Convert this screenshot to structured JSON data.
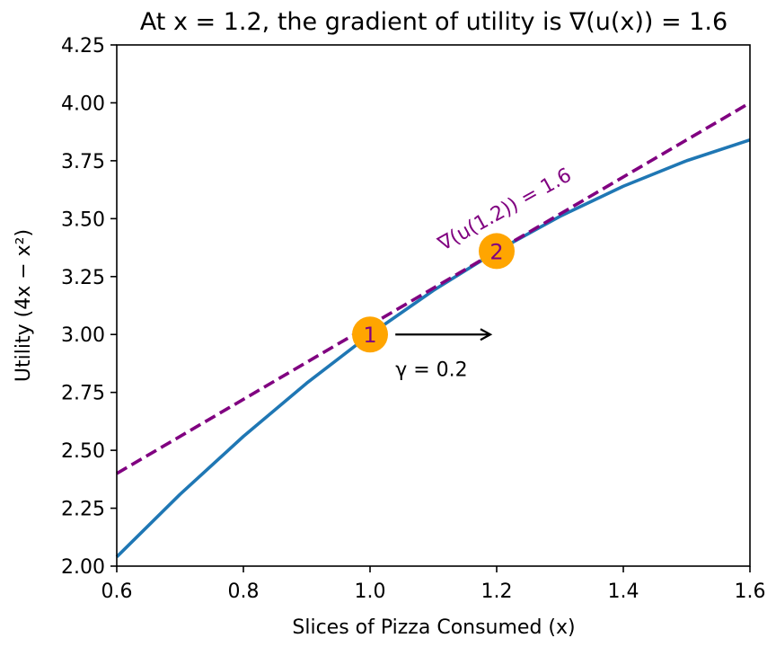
{
  "chart_data": {
    "type": "line",
    "title": "At x = 1.2, the gradient of utility is ∇(u(x)) = 1.6",
    "xlabel": "Slices of Pizza Consumed (x)",
    "ylabel": "Utility (4x − x²)",
    "xlim": [
      0.6,
      1.6
    ],
    "ylim": [
      2.0,
      4.25
    ],
    "x_ticks": [
      0.6,
      0.8,
      1.0,
      1.2,
      1.4,
      1.6
    ],
    "x_tick_labels": [
      "0.6",
      "0.8",
      "1.0",
      "1.2",
      "1.4",
      "1.6"
    ],
    "y_ticks": [
      2.0,
      2.25,
      2.5,
      2.75,
      3.0,
      3.25,
      3.5,
      3.75,
      4.0,
      4.25
    ],
    "y_tick_labels": [
      "2.00",
      "2.25",
      "2.50",
      "2.75",
      "3.00",
      "3.25",
      "3.50",
      "3.75",
      "4.00",
      "4.25"
    ],
    "grid": false,
    "series": [
      {
        "color": "#1f77b4",
        "style": "solid",
        "x": [
          0.6,
          0.7,
          0.8,
          0.9,
          1.0,
          1.1,
          1.2,
          1.3,
          1.4,
          1.5,
          1.6
        ],
        "y": [
          2.04,
          2.31,
          2.56,
          2.79,
          3.0,
          3.19,
          3.36,
          3.51,
          3.64,
          3.75,
          3.84
        ]
      },
      {
        "color": "#800080",
        "style": "dashed",
        "x": [
          0.6,
          1.6
        ],
        "y": [
          2.4,
          4.0
        ]
      }
    ],
    "points": [
      {
        "label": "1",
        "x": 1.0,
        "y": 3.0,
        "color": "#ffa500",
        "text_color": "#800080"
      },
      {
        "label": "2",
        "x": 1.2,
        "y": 3.36,
        "color": "#ffa500",
        "text_color": "#800080"
      }
    ],
    "arrow": {
      "x_start": 1.04,
      "x_end": 1.19,
      "y": 3.0,
      "color": "#000000"
    },
    "annotations": [
      {
        "text": "γ = 0.2",
        "x": 1.04,
        "y": 2.82,
        "color": "#000000",
        "rotation": 0
      },
      {
        "text": "∇(u(1.2)) = 1.6",
        "x": 1.115,
        "y": 3.36,
        "color": "#800080",
        "rotation": -29
      }
    ]
  }
}
